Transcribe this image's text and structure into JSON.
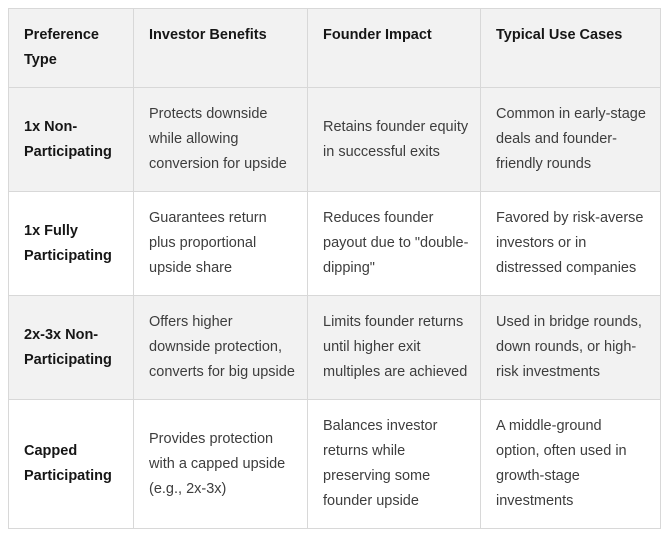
{
  "table": {
    "columns": [
      {
        "label": "Preference Type"
      },
      {
        "label": "Investor Benefits"
      },
      {
        "label": "Founder Impact"
      },
      {
        "label": "Typical Use Cases"
      }
    ],
    "rows": [
      {
        "preference_type": "1x Non-Participating",
        "investor_benefits": "Protects downside while allowing conversion for upside",
        "founder_impact": "Retains founder equity in successful exits",
        "typical_use_cases": "Common in early-stage deals and founder-friendly rounds"
      },
      {
        "preference_type": "1x Fully Participating",
        "investor_benefits": "Guarantees return plus proportional upside share",
        "founder_impact": "Reduces founder payout due to \"double-dipping\"",
        "typical_use_cases": "Favored by risk-averse investors or in distressed companies"
      },
      {
        "preference_type": "2x-3x Non-Participating",
        "investor_benefits": "Offers higher downside protection, converts for big upside",
        "founder_impact": "Limits founder returns until higher exit multiples are achieved",
        "typical_use_cases": "Used in bridge rounds, down rounds, or high-risk investments"
      },
      {
        "preference_type": "Capped Participating",
        "investor_benefits": "Provides protection with a capped upside (e.g., 2x-3x)",
        "founder_impact": "Balances investor returns while preserving some founder upside",
        "typical_use_cases": "A middle-ground option, often used in growth-stage investments"
      }
    ],
    "colors": {
      "stripe_background": "#f2f2f2",
      "row_background": "#ffffff",
      "border": "#d8d8d8",
      "header_text": "#161616",
      "body_text": "#3d3d3d"
    }
  }
}
